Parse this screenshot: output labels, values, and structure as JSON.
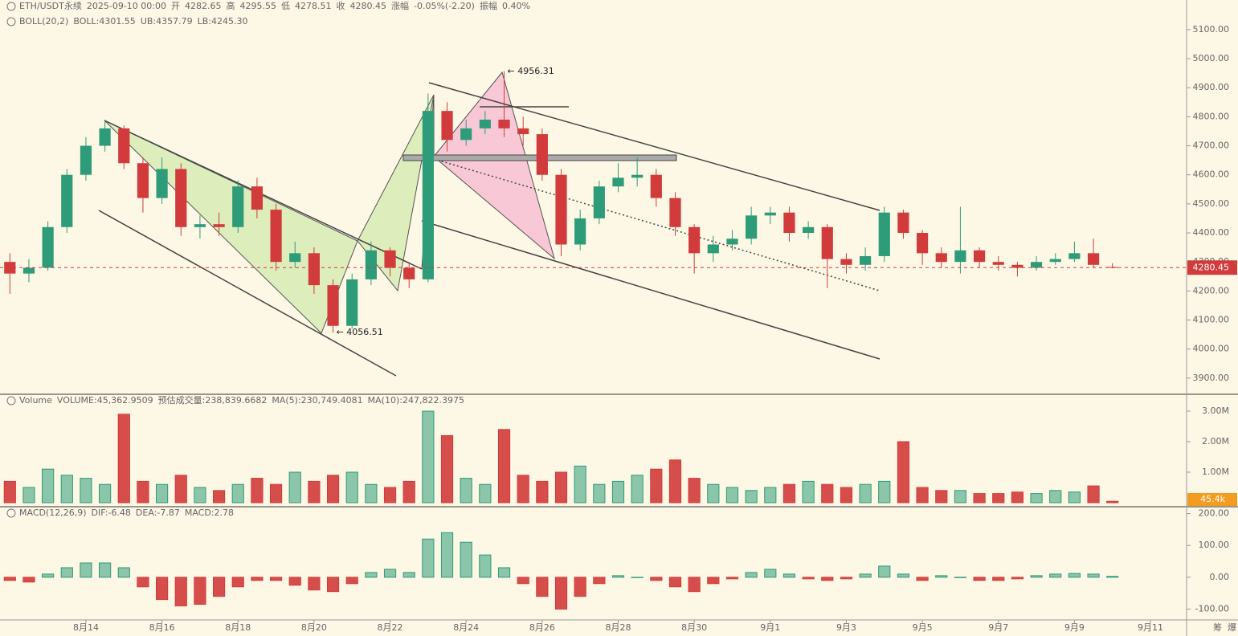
{
  "header": {
    "symbol": "ETH/USDT永续",
    "time": "2025-09-10 00:00",
    "open_label": "开",
    "open": 4282.65,
    "high_label": "高",
    "high": 4295.55,
    "low_label": "低",
    "low": 4278.51,
    "close_label": "收",
    "close": 4280.45,
    "change_label": "涨幅",
    "change": "-0.05%(-2.20)",
    "amplitude_label": "振幅",
    "amplitude": "0.40%"
  },
  "indicators": {
    "boll": {
      "name": "BOLL(20,2)",
      "mid": "BOLL:4301.55",
      "ub": "UB:4357.79",
      "lb": "LB:4245.30"
    },
    "volume": {
      "name": "Volume",
      "volume": "VOLUME:45,362.9509",
      "estimate": "预估成交量:238,839.6682",
      "ma5": "MA(5):230,749.4081",
      "ma10": "MA(10):247,822.3975"
    },
    "macd": {
      "name": "MACD(12,26,9)",
      "dif": "DIF:-6.48",
      "dea": "DEA:-7.87",
      "macd": "MACD:2.78"
    }
  },
  "side_icons": [
    "筹",
    "爆"
  ],
  "chart_data": [
    {
      "type": "candlestick",
      "up_color": "#2e9c78",
      "down_color": "#d23b3b",
      "x": [
        12,
        12.5,
        13,
        13.5,
        14,
        14.5,
        15,
        15.5,
        16,
        16.5,
        17,
        17.5,
        18,
        18.5,
        19,
        19.5,
        20,
        20.5,
        21,
        21.5,
        22,
        22.5,
        23,
        23.5,
        24,
        24.5,
        25,
        25.5,
        26,
        26.5,
        27,
        27.5,
        28,
        28.5,
        29,
        29.5,
        30,
        30.5,
        31,
        31.5,
        32,
        32.5,
        33,
        33.5,
        34,
        34.5,
        35,
        35.5,
        36,
        36.5,
        37,
        37.5,
        38,
        38.5,
        39,
        39.5,
        40,
        40.5,
        41
      ],
      "open": [
        4300,
        4260,
        4280,
        4420,
        4600,
        4700,
        4760,
        4640,
        4520,
        4620,
        4420,
        4430,
        4420,
        4560,
        4480,
        4300,
        4330,
        4220,
        4080,
        4240,
        4340,
        4280,
        4240,
        4820,
        4720,
        4760,
        4790,
        4760,
        4740,
        4600,
        4360,
        4450,
        4560,
        4590,
        4600,
        4520,
        4420,
        4330,
        4360,
        4380,
        4460,
        4470,
        4400,
        4420,
        4310,
        4290,
        4320,
        4470,
        4400,
        4330,
        4300,
        4340,
        4300,
        4290,
        4280,
        4300,
        4310,
        4330,
        4282.65
      ],
      "high": [
        4330,
        4310,
        4440,
        4620,
        4730,
        4790,
        4770,
        4660,
        4660,
        4640,
        4460,
        4470,
        4580,
        4590,
        4500,
        4370,
        4350,
        4240,
        4260,
        4370,
        4350,
        4300,
        4880,
        4850,
        4790,
        4820,
        4956.31,
        4800,
        4760,
        4620,
        4480,
        4580,
        4640,
        4660,
        4620,
        4540,
        4430,
        4390,
        4410,
        4490,
        4490,
        4490,
        4440,
        4430,
        4330,
        4350,
        4490,
        4480,
        4410,
        4350,
        4490,
        4350,
        4320,
        4300,
        4320,
        4330,
        4370,
        4380,
        4295.55
      ],
      "low": [
        4190,
        4230,
        4270,
        4400,
        4580,
        4680,
        4620,
        4470,
        4500,
        4390,
        4380,
        4390,
        4400,
        4450,
        4270,
        4280,
        4190,
        4056.51,
        4070,
        4220,
        4250,
        4210,
        4230,
        4680,
        4700,
        4740,
        4730,
        4700,
        4580,
        4320,
        4340,
        4430,
        4540,
        4560,
        4490,
        4390,
        4260,
        4300,
        4340,
        4360,
        4430,
        4370,
        4380,
        4210,
        4260,
        4270,
        4300,
        4380,
        4290,
        4280,
        4260,
        4280,
        4270,
        4250,
        4270,
        4290,
        4300,
        4280,
        4278.51
      ],
      "close": [
        4260,
        4280,
        4420,
        4600,
        4700,
        4760,
        4640,
        4520,
        4620,
        4420,
        4430,
        4420,
        4560,
        4480,
        4300,
        4330,
        4220,
        4080,
        4240,
        4340,
        4280,
        4240,
        4820,
        4720,
        4760,
        4790,
        4760,
        4740,
        4600,
        4360,
        4450,
        4560,
        4590,
        4600,
        4520,
        4420,
        4330,
        4360,
        4380,
        4460,
        4470,
        4400,
        4420,
        4310,
        4290,
        4320,
        4470,
        4400,
        4330,
        4300,
        4340,
        4300,
        4290,
        4280,
        4300,
        4310,
        4330,
        4290,
        4280.45
      ],
      "xlim": [
        11.74,
        42.95
      ],
      "xticks": [
        {
          "value": 14,
          "label": "8月14"
        },
        {
          "value": 16,
          "label": "8月16"
        },
        {
          "value": 18,
          "label": "8月18"
        },
        {
          "value": 20,
          "label": "8月20"
        },
        {
          "value": 22,
          "label": "8月22"
        },
        {
          "value": 24,
          "label": "8月24"
        },
        {
          "value": 26,
          "label": "8月26"
        },
        {
          "value": 28,
          "label": "8月28"
        },
        {
          "value": 30,
          "label": "8月30"
        },
        {
          "value": 32,
          "label": "9月1"
        },
        {
          "value": 34,
          "label": "9月3"
        },
        {
          "value": 36,
          "label": "9月5"
        },
        {
          "value": 38,
          "label": "9月7"
        },
        {
          "value": 40,
          "label": "9月9"
        },
        {
          "value": 42,
          "label": "9月11"
        }
      ],
      "ylim": [
        3847,
        5202
      ],
      "yticks": [
        {
          "value": 3900,
          "label": "3900.00"
        },
        {
          "value": 4000,
          "label": "4000.00"
        },
        {
          "value": 4100,
          "label": "4100.00"
        },
        {
          "value": 4200,
          "label": "4200.00"
        },
        {
          "value": 4300,
          "label": "4300.00"
        },
        {
          "value": 4400,
          "label": "4400.00"
        },
        {
          "value": 4500,
          "label": "4500.00"
        },
        {
          "value": 4600,
          "label": "4600.00"
        },
        {
          "value": 4700,
          "label": "4700.00"
        },
        {
          "value": 4800,
          "label": "4800.00"
        },
        {
          "value": 4900,
          "label": "4900.00"
        },
        {
          "value": 5000,
          "label": "5000.00"
        },
        {
          "value": 5100,
          "label": "5100.00"
        }
      ],
      "last_price": 4280.45,
      "annotations": [
        {
          "text": "← 4956.31",
          "x": 25,
          "y": 4956.31
        },
        {
          "text": "← 4056.51",
          "x": 20.5,
          "y": 4056.51
        }
      ]
    },
    {
      "type": "bar",
      "name": "volume",
      "values": [
        700000,
        500000,
        1100000,
        900000,
        800000,
        600000,
        2900000,
        700000,
        600000,
        900000,
        500000,
        400000,
        600000,
        800000,
        600000,
        1000000,
        700000,
        900000,
        1000000,
        600000,
        500000,
        700000,
        3000000,
        2200000,
        800000,
        600000,
        2400000,
        900000,
        700000,
        1000000,
        1200000,
        600000,
        700000,
        900000,
        1100000,
        1400000,
        800000,
        600000,
        500000,
        400000,
        500000,
        600000,
        700000,
        600000,
        500000,
        600000,
        700000,
        2000000,
        500000,
        400000,
        400000,
        300000,
        300000,
        350000,
        300000,
        400000,
        350000,
        550000,
        45362.9509
      ],
      "ylim": [
        -105000,
        3526000
      ],
      "yticks": [
        {
          "value": 1000000,
          "label": "1.00M"
        },
        {
          "value": 2000000,
          "label": "2.00M"
        },
        {
          "value": 3000000,
          "label": "3.00M"
        }
      ],
      "current_label": {
        "value": 45362.9509,
        "label": "45.4k"
      }
    },
    {
      "type": "bar",
      "name": "macd",
      "up_color": "#2e9c78",
      "down_color": "#d23b3b",
      "values": [
        -10,
        -15,
        10,
        30,
        45,
        45,
        30,
        -30,
        -70,
        -90,
        -85,
        -60,
        -30,
        -10,
        -10,
        -25,
        -40,
        -45,
        -20,
        15,
        25,
        15,
        120,
        140,
        110,
        70,
        30,
        -20,
        -60,
        -100,
        -60,
        -20,
        5,
        0,
        -10,
        -30,
        -45,
        -20,
        -5,
        15,
        25,
        10,
        -5,
        -10,
        -5,
        10,
        35,
        10,
        -10,
        5,
        0,
        -10,
        -10,
        -5,
        5,
        10,
        12,
        10,
        2.78
      ],
      "ylim": [
        -134,
        219
      ],
      "yticks": [
        {
          "value": -100,
          "label": "-100.00"
        },
        {
          "value": 0,
          "label": "0.00"
        },
        {
          "value": 100,
          "label": "100.00"
        },
        {
          "value": 200,
          "label": "200.00"
        }
      ]
    }
  ]
}
